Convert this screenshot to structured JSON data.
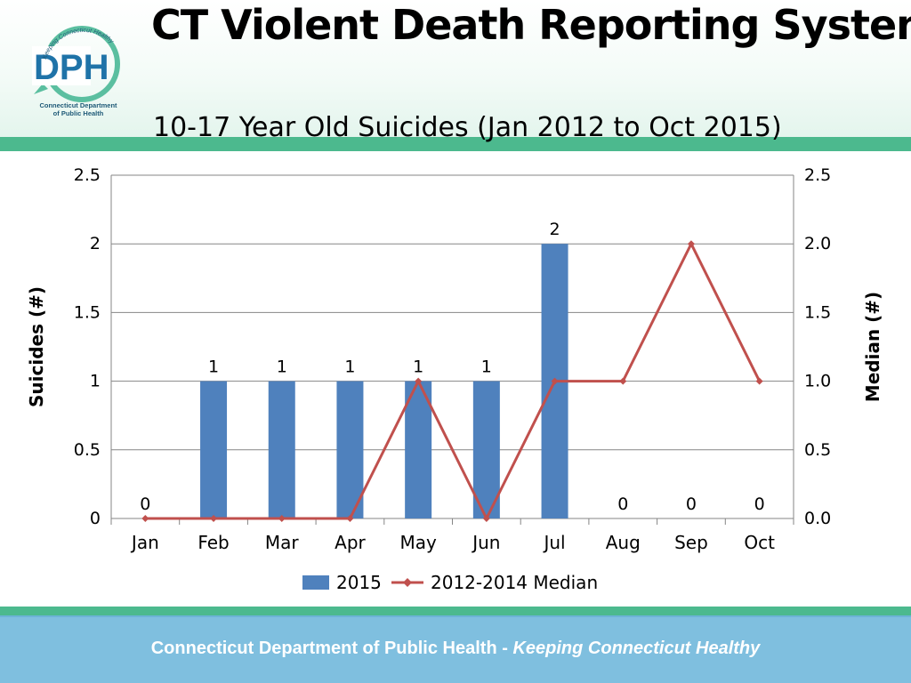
{
  "header": {
    "title": "CT Violent Death Reporting System",
    "subtitle": "10-17 Year Old Suicides (Jan 2012 to Oct 2015)"
  },
  "logo": {
    "text": "DPH",
    "ring_text": "Keeping Connecticut Healthy",
    "caption_line1": "Connecticut Department",
    "caption_line2": "of Public Health",
    "colors": {
      "ring": "#5bbfa0",
      "letters": "#1f73a8"
    }
  },
  "footer": {
    "main": "Connecticut Department of Public Health",
    "separator": " - ",
    "tagline": "Keeping Connecticut Healthy"
  },
  "chart_data": {
    "type": "bar",
    "categories": [
      "Jan",
      "Feb",
      "Mar",
      "Apr",
      "May",
      "Jun",
      "Jul",
      "Aug",
      "Sep",
      "Oct"
    ],
    "series": [
      {
        "name": "2015",
        "type": "bar",
        "axis": "left",
        "color": "#4f81bd",
        "values": [
          0,
          1,
          1,
          1,
          1,
          1,
          2,
          0,
          0,
          0
        ],
        "data_labels": [
          "0",
          "1",
          "1",
          "1",
          "1",
          "1",
          "2",
          "0",
          "0",
          "0"
        ]
      },
      {
        "name": "2012-2014 Median",
        "type": "line",
        "axis": "right",
        "color": "#c0504d",
        "values": [
          0,
          0,
          0,
          0,
          1,
          0,
          1,
          1,
          2,
          1
        ]
      }
    ],
    "ylabel": "Suicides (#)",
    "y2label": "Median (#)",
    "ylim": [
      0,
      2.5
    ],
    "y2lim": [
      0,
      2.5
    ],
    "yticks": [
      "0",
      "0.5",
      "1",
      "1.5",
      "2",
      "2.5"
    ],
    "y2ticks": [
      "0.0",
      "0.5",
      "1.0",
      "1.5",
      "2.0",
      "2.5"
    ],
    "grid": true,
    "legend_position": "bottom"
  }
}
